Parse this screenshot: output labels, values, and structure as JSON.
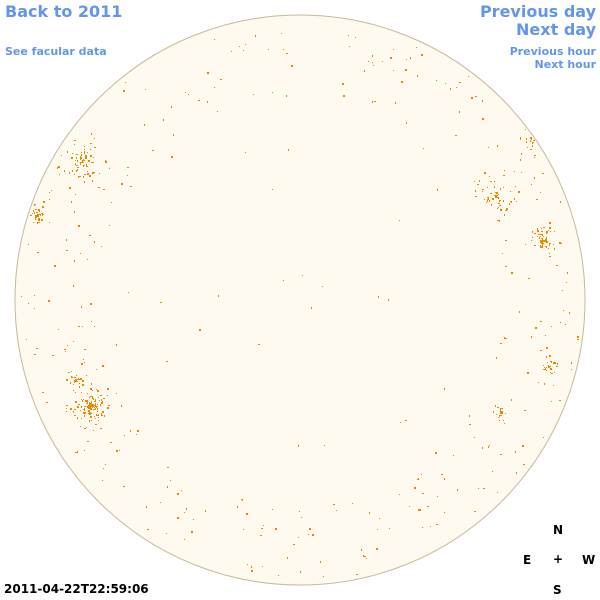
{
  "nav": {
    "back": "Back to 2011",
    "facular": "See facular data",
    "prev_day": "Previous day",
    "next_day": "Next day",
    "prev_hour": "Previous hour",
    "next_hour": "Next hour"
  },
  "timestamp": "2011-04-22T22:59:06",
  "compass": {
    "n": "N",
    "e": "E",
    "center": "+",
    "w": "W",
    "s": "S"
  },
  "colors": {
    "disk_fill": "#fffaf0",
    "disk_edge": "#c8b898",
    "feature": "#e88a00",
    "link": "#6495ed"
  }
}
